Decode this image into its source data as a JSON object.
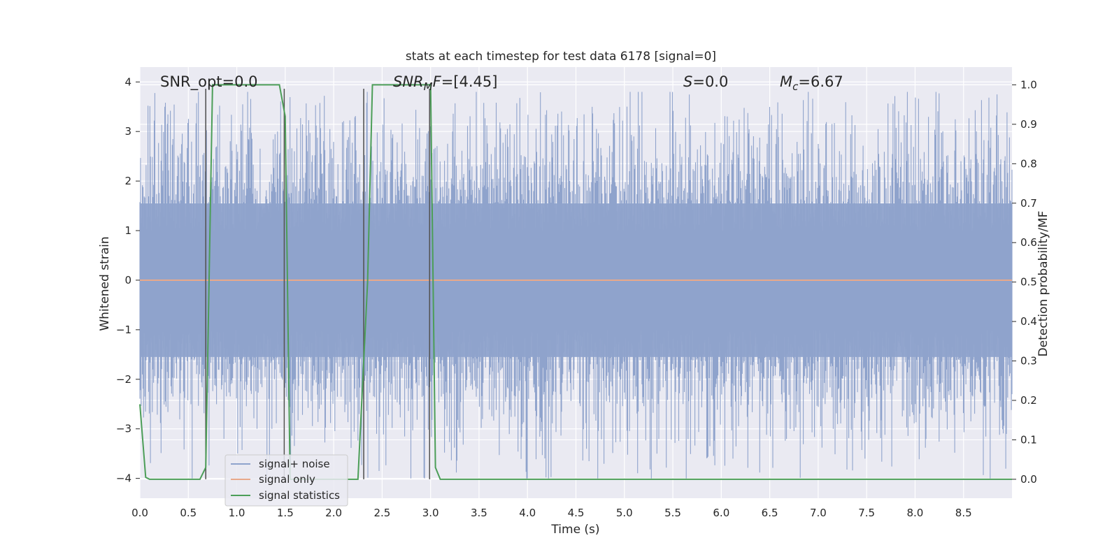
{
  "chart_data": {
    "type": "line",
    "title": "stats at each timestep for test data 6178 [signal=0]",
    "xlabel": "Time (s)",
    "ylabel": "Whitened strain",
    "y2label": "Detection probability/MF",
    "xlim": [
      0.0,
      9.0
    ],
    "ylim": [
      -4.4,
      4.3
    ],
    "y2lim": [
      -0.048,
      1.045
    ],
    "x_ticks": [
      "0.0",
      "0.5",
      "1.0",
      "1.5",
      "2.0",
      "2.5",
      "3.0",
      "3.5",
      "4.0",
      "4.5",
      "5.0",
      "5.5",
      "6.0",
      "6.5",
      "7.0",
      "7.5",
      "8.0",
      "8.5"
    ],
    "y_ticks": [
      "4",
      "3",
      "2",
      "1",
      "0",
      "−1",
      "−2",
      "−3",
      "−4"
    ],
    "y2_ticks": [
      "1.0",
      "0.9",
      "0.8",
      "0.7",
      "0.6",
      "0.5",
      "0.4",
      "0.3",
      "0.2",
      "0.1",
      "0.0"
    ],
    "grid": true,
    "legend_position": "lower-left",
    "annotations": [
      {
        "id": "snr-opt",
        "parts": [
          {
            "text": "SNR_opt=0.0"
          }
        ]
      },
      {
        "id": "snr-mf",
        "parts": [
          {
            "text": "SNR",
            "italic": true
          },
          {
            "text": "M",
            "italic": true,
            "sub": true
          },
          {
            "text": "F",
            "italic": true
          },
          {
            "text": "=[4.45]"
          }
        ]
      },
      {
        "id": "s-stat",
        "parts": [
          {
            "text": "S",
            "italic": true
          },
          {
            "text": "=0.0"
          }
        ]
      },
      {
        "id": "chirp-mass",
        "parts": [
          {
            "text": "M",
            "italic": true
          },
          {
            "text": "c",
            "italic": true,
            "sub": true
          },
          {
            "text": "=6.67"
          }
        ]
      }
    ],
    "series": [
      {
        "name": "signal+ noise",
        "color": "#8fa3cc",
        "kind": "noise",
        "sigma": 0.75,
        "upper_peak": 3.8,
        "lower_peak": -4.0
      },
      {
        "name": "signal only",
        "color": "#e8a88a",
        "y": 0.0
      },
      {
        "name": "signal statistics",
        "color": "#4c9e58",
        "axis": "right",
        "x": [
          0.0,
          0.06,
          0.1,
          0.62,
          0.68,
          0.75,
          1.44,
          1.5,
          1.55,
          2.25,
          2.35,
          2.4,
          3.0,
          3.05,
          3.1,
          9.0
        ],
        "y": [
          0.19,
          0.005,
          0.0,
          0.0,
          0.03,
          1.0,
          1.0,
          0.92,
          0.0,
          0.0,
          0.5,
          1.0,
          1.0,
          0.03,
          0.0,
          0.0
        ]
      }
    ],
    "vertical_markers": {
      "color": "#555555",
      "x": [
        0.68,
        1.49,
        2.31,
        2.99
      ],
      "y_top": 0.99,
      "y_bottom": 0.0
    }
  }
}
